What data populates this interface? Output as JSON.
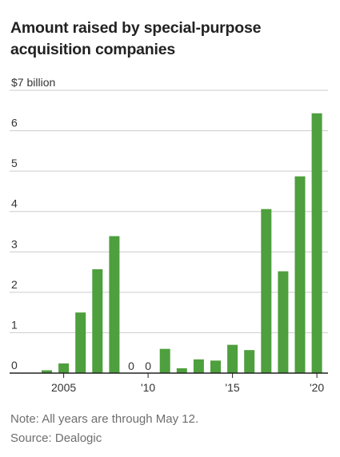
{
  "chart_data": {
    "type": "bar",
    "title": "Amount raised by special-purpose acquisition companies",
    "unit_label": "$7 billion",
    "x": [
      2004,
      2005,
      2006,
      2007,
      2008,
      2009,
      2010,
      2011,
      2012,
      2013,
      2014,
      2015,
      2016,
      2017,
      2018,
      2019,
      2020
    ],
    "values": [
      0.07,
      0.24,
      1.5,
      2.57,
      3.39,
      0,
      0,
      0.6,
      0.12,
      0.34,
      0.31,
      0.7,
      0.57,
      4.06,
      2.52,
      4.87,
      6.43
    ],
    "value_labels": [
      "",
      "",
      "",
      "",
      "",
      "0",
      "0",
      "",
      "",
      "",
      "",
      "",
      "",
      "",
      "",
      "",
      ""
    ],
    "x_tick_labels": [
      {
        "x": 2005,
        "label": "2005"
      },
      {
        "x": 2010,
        "label": "'10"
      },
      {
        "x": 2015,
        "label": "'15"
      },
      {
        "x": 2020,
        "label": "'20"
      }
    ],
    "y_ticks": [
      0,
      1,
      2,
      3,
      4,
      5,
      6,
      7
    ],
    "y_tick_labels": [
      "0",
      "1",
      "2",
      "3",
      "4",
      "5",
      "6",
      "$7 billion"
    ],
    "ylim": [
      0,
      7
    ],
    "grid": true,
    "bar_color": "#4e9f3d",
    "grid_color": "#cccccc"
  },
  "notes": {
    "note": "Note: All years are through May 12.",
    "source": "Source: Dealogic"
  }
}
